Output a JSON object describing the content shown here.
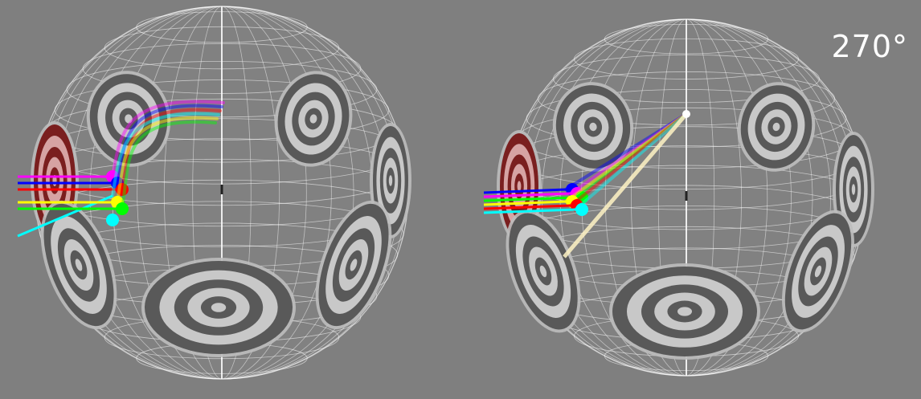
{
  "view": {
    "angle_label": "270°"
  },
  "colors": {
    "background": "#7f7f7f",
    "grid": "#ffffff",
    "target_dark": "#595959",
    "target_light": "#c8c8c8",
    "target_active_dark": "#7a1f1f",
    "target_active_light": "#d6a3a3"
  },
  "panels": [
    {
      "name": "left-view",
      "trajectory_style": "curved",
      "trajectories": [
        {
          "color": "#ff00ff",
          "label": "magenta"
        },
        {
          "color": "#0000ff",
          "label": "blue"
        },
        {
          "color": "#ff0000",
          "label": "red"
        },
        {
          "color": "#00ffff",
          "label": "cyan"
        },
        {
          "color": "#ffff00",
          "label": "yellow"
        },
        {
          "color": "#00ff00",
          "label": "green"
        }
      ]
    },
    {
      "name": "right-view",
      "trajectory_style": "straight",
      "trajectories": [
        {
          "color": "#0000ff",
          "label": "blue"
        },
        {
          "color": "#ff00ff",
          "label": "magenta"
        },
        {
          "color": "#00ff00",
          "label": "green"
        },
        {
          "color": "#ffff00",
          "label": "yellow"
        },
        {
          "color": "#ff0000",
          "label": "red"
        },
        {
          "color": "#00ffff",
          "label": "cyan"
        }
      ]
    }
  ]
}
